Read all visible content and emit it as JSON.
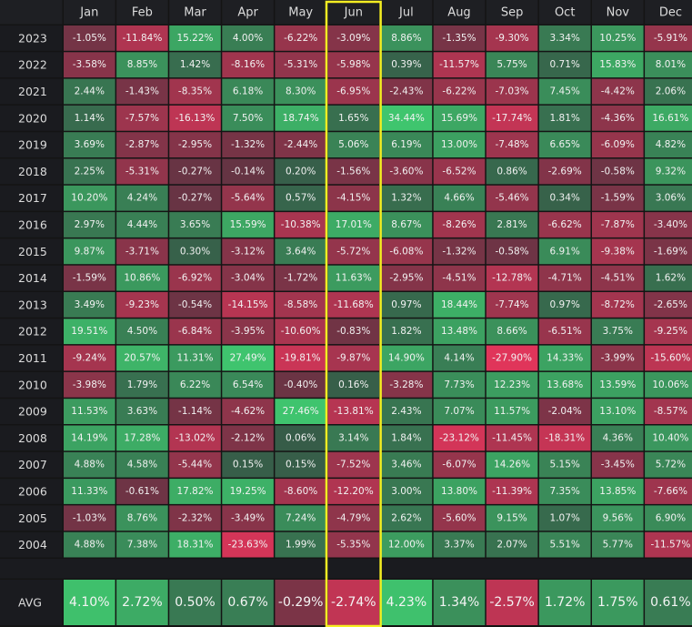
{
  "chart_data": {
    "type": "heatmap",
    "title": "",
    "columns": [
      "Jan",
      "Feb",
      "Mar",
      "Apr",
      "May",
      "Jun",
      "Jul",
      "Aug",
      "Sep",
      "Oct",
      "Nov",
      "Dec"
    ],
    "rows": [
      {
        "year": "2023",
        "values": [
          "-1.05%",
          "-11.84%",
          "15.22%",
          "4.00%",
          "-6.22%",
          "-3.09%",
          "8.86%",
          "-1.35%",
          "-9.30%",
          "3.34%",
          "10.25%",
          "-5.91%"
        ]
      },
      {
        "year": "2022",
        "values": [
          "-3.58%",
          "8.85%",
          "1.42%",
          "-8.16%",
          "-5.31%",
          "-5.98%",
          "0.39%",
          "-11.57%",
          "5.75%",
          "0.71%",
          "15.83%",
          "8.01%"
        ]
      },
      {
        "year": "2021",
        "values": [
          "2.44%",
          "-1.43%",
          "-8.35%",
          "6.18%",
          "8.30%",
          "-6.95%",
          "-2.43%",
          "-6.22%",
          "-7.03%",
          "7.45%",
          "-4.42%",
          "2.06%"
        ]
      },
      {
        "year": "2020",
        "values": [
          "1.14%",
          "-7.57%",
          "-16.13%",
          "7.50%",
          "18.74%",
          "1.65%",
          "34.44%",
          "15.69%",
          "-17.74%",
          "1.81%",
          "-4.36%",
          "16.61%"
        ]
      },
      {
        "year": "2019",
        "values": [
          "3.69%",
          "-2.87%",
          "-2.95%",
          "-1.32%",
          "-2.44%",
          "5.06%",
          "6.19%",
          "13.00%",
          "-7.48%",
          "6.65%",
          "-6.09%",
          "4.82%"
        ]
      },
      {
        "year": "2018",
        "values": [
          "2.25%",
          "-5.31%",
          "-0.27%",
          "-0.14%",
          "0.20%",
          "-1.56%",
          "-3.60%",
          "-6.52%",
          "0.86%",
          "-2.69%",
          "-0.58%",
          "9.32%"
        ]
      },
      {
        "year": "2017",
        "values": [
          "10.20%",
          "4.24%",
          "-0.27%",
          "-5.64%",
          "0.57%",
          "-4.15%",
          "1.32%",
          "4.66%",
          "-5.46%",
          "0.34%",
          "-1.59%",
          "3.06%"
        ]
      },
      {
        "year": "2016",
        "values": [
          "2.97%",
          "4.44%",
          "3.65%",
          "15.59%",
          "-10.38%",
          "17.01%",
          "8.67%",
          "-8.26%",
          "2.81%",
          "-6.62%",
          "-7.87%",
          "-3.40%"
        ]
      },
      {
        "year": "2015",
        "values": [
          "9.87%",
          "-3.71%",
          "0.30%",
          "-3.12%",
          "3.64%",
          "-5.72%",
          "-6.08%",
          "-1.32%",
          "-0.58%",
          "6.91%",
          "-9.38%",
          "-1.69%"
        ]
      },
      {
        "year": "2014",
        "values": [
          "-1.59%",
          "10.86%",
          "-6.92%",
          "-3.04%",
          "-1.72%",
          "11.63%",
          "-2.95%",
          "-4.51%",
          "-12.78%",
          "-4.71%",
          "-4.51%",
          "1.62%"
        ]
      },
      {
        "year": "2013",
        "values": [
          "3.49%",
          "-9.23%",
          "-0.54%",
          "-14.15%",
          "-8.58%",
          "-11.68%",
          "0.97%",
          "18.44%",
          "-7.74%",
          "0.97%",
          "-8.72%",
          "-2.65%"
        ]
      },
      {
        "year": "2012",
        "values": [
          "19.51%",
          "4.50%",
          "-6.84%",
          "-3.95%",
          "-10.60%",
          "-0.83%",
          "1.82%",
          "13.48%",
          "8.66%",
          "-6.51%",
          "3.75%",
          "-9.25%"
        ]
      },
      {
        "year": "2011",
        "values": [
          "-9.24%",
          "20.57%",
          "11.31%",
          "27.49%",
          "-19.81%",
          "-9.87%",
          "14.90%",
          "4.14%",
          "-27.90%",
          "14.33%",
          "-3.99%",
          "-15.60%"
        ]
      },
      {
        "year": "2010",
        "values": [
          "-3.98%",
          "1.79%",
          "6.22%",
          "6.54%",
          "-0.40%",
          "0.16%",
          "-3.28%",
          "7.73%",
          "12.23%",
          "13.68%",
          "13.59%",
          "10.06%"
        ]
      },
      {
        "year": "2009",
        "values": [
          "11.53%",
          "3.63%",
          "-1.14%",
          "-4.62%",
          "27.46%",
          "-13.81%",
          "2.43%",
          "7.07%",
          "11.57%",
          "-2.04%",
          "13.10%",
          "-8.57%"
        ]
      },
      {
        "year": "2008",
        "values": [
          "14.19%",
          "17.28%",
          "-13.02%",
          "-2.12%",
          "0.06%",
          "3.14%",
          "1.84%",
          "-23.12%",
          "-11.45%",
          "-18.31%",
          "4.36%",
          "10.40%"
        ]
      },
      {
        "year": "2007",
        "values": [
          "4.88%",
          "4.58%",
          "-5.44%",
          "0.15%",
          "0.15%",
          "-7.52%",
          "3.46%",
          "-6.07%",
          "14.26%",
          "5.15%",
          "-3.45%",
          "5.72%"
        ]
      },
      {
        "year": "2006",
        "values": [
          "11.33%",
          "-0.61%",
          "17.82%",
          "19.25%",
          "-8.60%",
          "-12.20%",
          "3.00%",
          "13.80%",
          "-11.39%",
          "7.35%",
          "13.85%",
          "-7.66%"
        ]
      },
      {
        "year": "2005",
        "values": [
          "-1.03%",
          "8.76%",
          "-2.32%",
          "-3.49%",
          "7.24%",
          "-4.79%",
          "2.62%",
          "-5.60%",
          "9.15%",
          "1.07%",
          "9.56%",
          "6.90%"
        ]
      },
      {
        "year": "2004",
        "values": [
          "4.88%",
          "7.38%",
          "18.31%",
          "-23.63%",
          "1.99%",
          "-5.35%",
          "12.00%",
          "3.37%",
          "2.07%",
          "5.51%",
          "5.77%",
          "-11.57%"
        ]
      }
    ],
    "avg_label": "AVG",
    "avg": [
      "4.10%",
      "2.72%",
      "0.50%",
      "0.67%",
      "-0.29%",
      "-2.74%",
      "4.23%",
      "1.34%",
      "-2.57%",
      "1.72%",
      "1.75%",
      "0.61%"
    ],
    "highlighted_column": "Jun",
    "colors": {
      "background": "#141414",
      "positive": "#3fc56e",
      "negative": "#e0355a",
      "neutral": "#33343a",
      "highlight_border": "#f4ee22"
    }
  }
}
